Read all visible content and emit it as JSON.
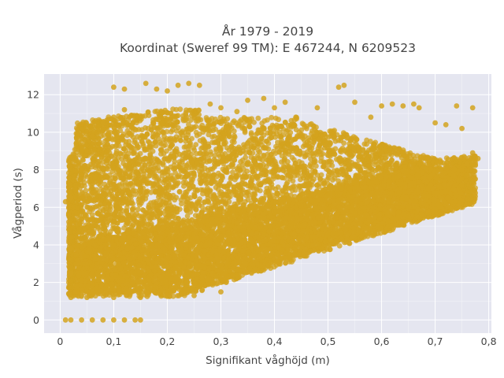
{
  "chart_data": {
    "type": "scatter",
    "title_lines": [
      "År 1979 - 2019",
      "Koordinat (Sweref 99 TM): E 467244, N 6209523"
    ],
    "xlabel": "Signifikant våghöjd (m)",
    "ylabel": "Vågperiod (s)",
    "xlim": [
      -0.03,
      0.805
    ],
    "ylim": [
      -0.7,
      13.1
    ],
    "x_ticks": [
      0,
      0.1,
      0.2,
      0.3,
      0.4,
      0.5,
      0.6,
      0.7,
      0.8
    ],
    "x_tick_labels": [
      "0",
      "0,1",
      "0,2",
      "0,3",
      "0,4",
      "0,5",
      "0,6",
      "0,7",
      "0,8"
    ],
    "y_ticks": [
      0,
      2,
      4,
      6,
      8,
      10,
      12
    ],
    "y_tick_labels": [
      "0",
      "2",
      "4",
      "6",
      "8",
      "10",
      "12"
    ],
    "grid": true,
    "legend": "none",
    "marker_color": "#d4a31e",
    "plot_background": "#e5e6f0",
    "series": [
      {
        "points": [
          [
            0.01,
            0
          ],
          [
            0.02,
            0
          ],
          [
            0.04,
            0
          ],
          [
            0.06,
            0
          ],
          [
            0.08,
            0
          ],
          [
            0.1,
            0
          ],
          [
            0.12,
            0
          ],
          [
            0.14,
            0
          ],
          [
            0.15,
            0
          ],
          [
            0.02,
            1.2
          ],
          [
            0.05,
            1.2
          ],
          [
            0.1,
            1.2
          ],
          [
            0.15,
            1.2
          ],
          [
            0.2,
            1.3
          ],
          [
            0.25,
            1.3
          ],
          [
            0.02,
            6.5
          ],
          [
            0.01,
            6.3
          ],
          [
            0.02,
            3.8
          ],
          [
            0.02,
            2.5
          ],
          [
            0.03,
            9.4
          ],
          [
            0.04,
            9.2
          ],
          [
            0.06,
            9.8
          ],
          [
            0.08,
            10.5
          ],
          [
            0.1,
            10.8
          ],
          [
            0.12,
            11.2
          ],
          [
            0.1,
            12.4
          ],
          [
            0.12,
            12.3
          ],
          [
            0.16,
            12.6
          ],
          [
            0.18,
            12.3
          ],
          [
            0.2,
            12.2
          ],
          [
            0.22,
            12.5
          ],
          [
            0.24,
            12.6
          ],
          [
            0.26,
            12.5
          ],
          [
            0.28,
            11.5
          ],
          [
            0.3,
            11.3
          ],
          [
            0.33,
            11.1
          ],
          [
            0.35,
            11.7
          ],
          [
            0.38,
            11.8
          ],
          [
            0.4,
            11.3
          ],
          [
            0.42,
            11.6
          ],
          [
            0.44,
            10.8
          ],
          [
            0.48,
            11.3
          ],
          [
            0.52,
            12.4
          ],
          [
            0.53,
            12.5
          ],
          [
            0.55,
            11.6
          ],
          [
            0.58,
            10.8
          ],
          [
            0.6,
            11.4
          ],
          [
            0.62,
            11.5
          ],
          [
            0.64,
            11.4
          ],
          [
            0.66,
            11.5
          ],
          [
            0.67,
            11.3
          ],
          [
            0.7,
            10.5
          ],
          [
            0.72,
            10.4
          ],
          [
            0.74,
            11.4
          ],
          [
            0.75,
            10.2
          ],
          [
            0.77,
            11.3
          ],
          [
            0.25,
            1.6
          ],
          [
            0.3,
            1.5
          ],
          [
            0.31,
            2.0
          ],
          [
            0.78,
            8.6
          ],
          [
            0.77,
            8.9
          ],
          [
            0.76,
            8.3
          ]
        ]
      }
    ]
  }
}
